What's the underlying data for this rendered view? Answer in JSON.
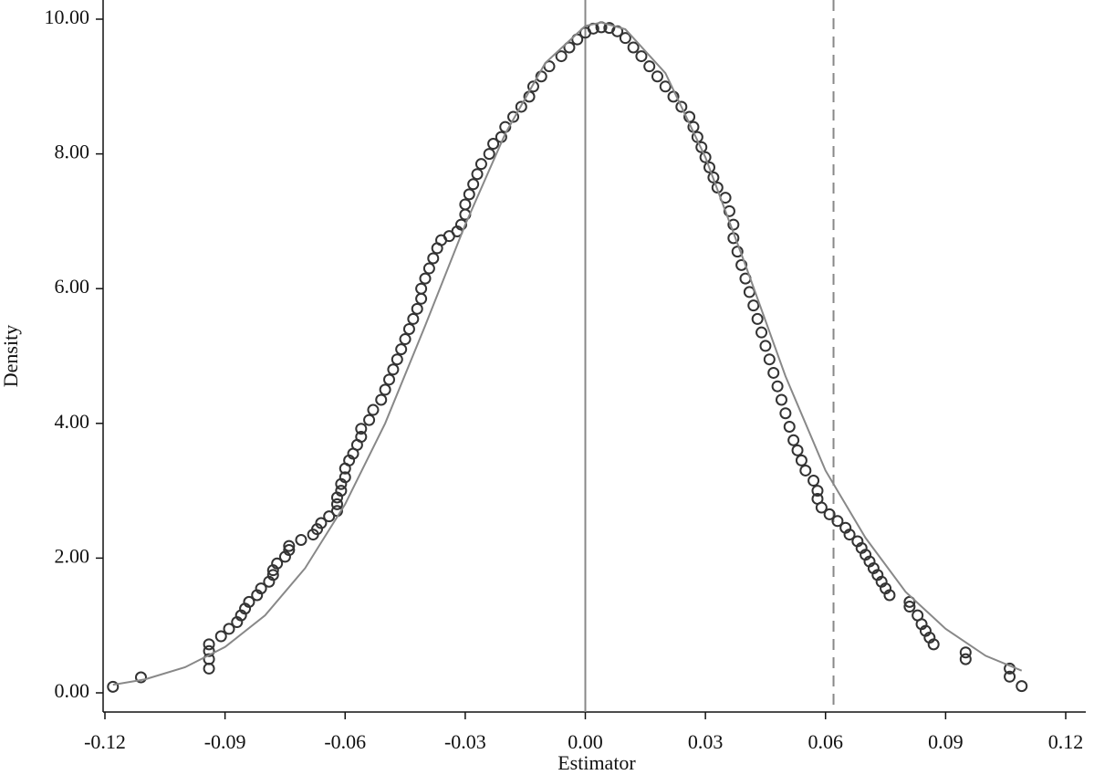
{
  "chart_data": {
    "type": "scatter",
    "x_label": "Estimator",
    "y_label": "Density",
    "xlim": [
      -0.12,
      0.12
    ],
    "ylim": [
      0,
      10
    ],
    "xticks": [
      -0.12,
      -0.09,
      -0.06,
      -0.03,
      {
        "value": 0,
        "label": "0.00"
      },
      0.03,
      0.06,
      0.09,
      0.12
    ],
    "yticks": [
      {
        "value": 0,
        "label": "0.00"
      },
      {
        "value": 2,
        "label": "2.00"
      },
      {
        "value": 4,
        "label": "4.00"
      },
      {
        "value": 6,
        "label": "6.00"
      },
      {
        "value": 8,
        "label": "8.00"
      },
      {
        "value": 10,
        "label": "10.00"
      }
    ],
    "vlines": [
      {
        "x": 0,
        "style": "solid",
        "color": "#888888"
      },
      {
        "x": 0.062,
        "style": "dashed",
        "color": "#888888"
      }
    ],
    "series": [
      {
        "type": "scatter",
        "color": "#333333",
        "x": [
          -0.118,
          -0.111,
          -0.094,
          -0.094,
          -0.094,
          -0.094,
          -0.091,
          -0.089,
          -0.087,
          -0.086,
          -0.085,
          -0.084,
          -0.082,
          -0.081,
          -0.079,
          -0.078,
          -0.078,
          -0.077,
          -0.075,
          -0.074,
          -0.074,
          -0.071,
          -0.068,
          -0.067,
          -0.066,
          -0.064,
          -0.062,
          -0.062,
          -0.062,
          -0.061,
          -0.061,
          -0.06,
          -0.06,
          -0.059,
          -0.058,
          -0.057,
          -0.056,
          -0.056,
          -0.054,
          -0.053,
          -0.051,
          -0.05,
          -0.049,
          -0.048,
          -0.047,
          -0.046,
          -0.045,
          -0.044,
          -0.043,
          -0.042,
          -0.041,
          -0.041,
          -0.04,
          -0.039,
          -0.038,
          -0.037,
          -0.036,
          -0.034,
          -0.032,
          -0.031,
          -0.03,
          -0.03,
          -0.029,
          -0.028,
          -0.027,
          -0.026,
          -0.024,
          -0.023,
          -0.021,
          -0.02,
          -0.018,
          -0.016,
          -0.014,
          -0.013,
          -0.011,
          -0.009,
          -0.006,
          -0.004,
          -0.002,
          0.0,
          0.002,
          0.004,
          0.006,
          0.008,
          0.01,
          0.012,
          0.014,
          0.016,
          0.018,
          0.02,
          0.022,
          0.024,
          0.026,
          0.027,
          0.028,
          0.029,
          0.03,
          0.031,
          0.032,
          0.033,
          0.035,
          0.036,
          0.037,
          0.037,
          0.038,
          0.039,
          0.04,
          0.041,
          0.042,
          0.043,
          0.044,
          0.045,
          0.046,
          0.047,
          0.048,
          0.049,
          0.05,
          0.051,
          0.052,
          0.053,
          0.054,
          0.055,
          0.057,
          0.058,
          0.058,
          0.059,
          0.061,
          0.063,
          0.065,
          0.066,
          0.068,
          0.069,
          0.07,
          0.071,
          0.072,
          0.073,
          0.074,
          0.075,
          0.076,
          0.081,
          0.081,
          0.083,
          0.084,
          0.085,
          0.086,
          0.087,
          0.095,
          0.095,
          0.106,
          0.106,
          0.109
        ],
        "values": [
          0.09,
          0.23,
          0.36,
          0.5,
          0.62,
          0.72,
          0.84,
          0.95,
          1.05,
          1.15,
          1.25,
          1.35,
          1.45,
          1.55,
          1.65,
          1.75,
          1.82,
          1.92,
          2.02,
          2.12,
          2.18,
          2.27,
          2.35,
          2.43,
          2.52,
          2.62,
          2.7,
          2.8,
          2.9,
          3.0,
          3.1,
          3.2,
          3.33,
          3.45,
          3.55,
          3.68,
          3.8,
          3.92,
          4.05,
          4.2,
          4.35,
          4.5,
          4.65,
          4.8,
          4.95,
          5.1,
          5.25,
          5.4,
          5.55,
          5.7,
          5.85,
          6.0,
          6.15,
          6.3,
          6.45,
          6.6,
          6.72,
          6.78,
          6.85,
          6.95,
          7.1,
          7.25,
          7.4,
          7.55,
          7.7,
          7.85,
          8.0,
          8.15,
          8.25,
          8.4,
          8.55,
          8.7,
          8.85,
          9.0,
          9.15,
          9.3,
          9.45,
          9.58,
          9.7,
          9.8,
          9.86,
          9.88,
          9.87,
          9.82,
          9.72,
          9.58,
          9.45,
          9.3,
          9.15,
          9.0,
          8.85,
          8.7,
          8.55,
          8.4,
          8.25,
          8.1,
          7.95,
          7.8,
          7.65,
          7.5,
          7.35,
          7.15,
          6.95,
          6.75,
          6.55,
          6.35,
          6.15,
          5.95,
          5.75,
          5.55,
          5.35,
          5.15,
          4.95,
          4.75,
          4.55,
          4.35,
          4.15,
          3.95,
          3.75,
          3.6,
          3.45,
          3.3,
          3.15,
          3.0,
          2.88,
          2.75,
          2.65,
          2.55,
          2.45,
          2.35,
          2.25,
          2.15,
          2.05,
          1.95,
          1.85,
          1.75,
          1.65,
          1.55,
          1.45,
          1.35,
          1.28,
          1.15,
          1.02,
          0.92,
          0.82,
          0.72,
          0.6,
          0.5,
          0.36,
          0.24,
          0.1
        ]
      },
      {
        "type": "line",
        "color": "#888888",
        "x": [
          -0.118,
          -0.11,
          -0.1,
          -0.09,
          -0.08,
          -0.07,
          -0.06,
          -0.05,
          -0.04,
          -0.03,
          -0.02,
          -0.01,
          0.0,
          0.004,
          0.01,
          0.02,
          0.03,
          0.04,
          0.05,
          0.06,
          0.07,
          0.08,
          0.09,
          0.1,
          0.109
        ],
        "values": [
          0.12,
          0.2,
          0.38,
          0.68,
          1.15,
          1.85,
          2.8,
          4.0,
          5.45,
          6.95,
          8.3,
          9.35,
          9.9,
          9.95,
          9.85,
          9.2,
          7.95,
          6.35,
          4.7,
          3.3,
          2.3,
          1.5,
          0.95,
          0.55,
          0.33
        ]
      }
    ]
  }
}
